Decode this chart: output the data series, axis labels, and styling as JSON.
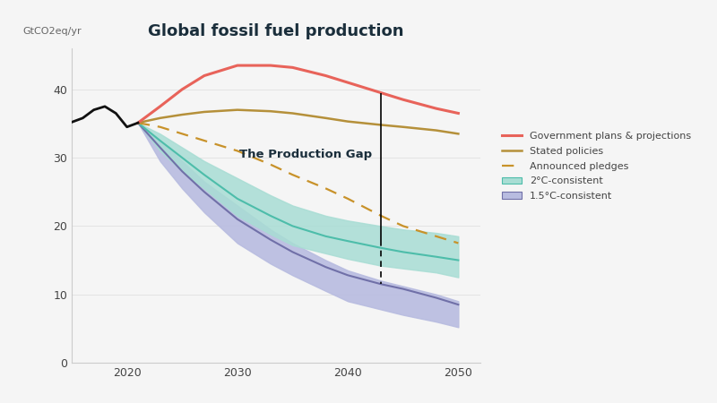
{
  "title": "Global fossil fuel production",
  "ylabel": "GtCO2eq/yr",
  "background_color": "#f5f5f5",
  "plot_bg_color": "#f5f5f5",
  "years_hist": [
    2015,
    2016,
    2017,
    2018,
    2019,
    2020,
    2021
  ],
  "hist_values": [
    35.2,
    35.8,
    37.0,
    37.5,
    36.5,
    34.5,
    35.1
  ],
  "years_proj": [
    2021,
    2023,
    2025,
    2027,
    2030,
    2033,
    2035,
    2038,
    2040,
    2043,
    2045,
    2048,
    2050
  ],
  "gov_plans": [
    35.1,
    37.5,
    40.0,
    42.0,
    43.5,
    43.5,
    43.2,
    42.0,
    41.0,
    39.5,
    38.5,
    37.2,
    36.5
  ],
  "stated_policies": [
    35.1,
    35.8,
    36.3,
    36.7,
    37.0,
    36.8,
    36.5,
    35.8,
    35.3,
    34.8,
    34.5,
    34.0,
    33.5
  ],
  "announced_pledges": [
    35.1,
    34.5,
    33.5,
    32.5,
    31.0,
    29.0,
    27.5,
    25.5,
    24.0,
    21.5,
    20.0,
    18.5,
    17.5
  ],
  "years_2c": [
    2021,
    2023,
    2025,
    2027,
    2030,
    2033,
    2035,
    2038,
    2040,
    2043,
    2045,
    2048,
    2050
  ],
  "line_2c": [
    35.1,
    32.5,
    30.0,
    27.5,
    24.0,
    21.5,
    20.0,
    18.5,
    17.8,
    16.8,
    16.2,
    15.5,
    15.0
  ],
  "band_2c_upper": [
    35.1,
    33.5,
    31.5,
    29.5,
    27.0,
    24.5,
    23.0,
    21.5,
    20.8,
    20.0,
    19.5,
    19.0,
    18.5
  ],
  "band_2c_lower": [
    35.1,
    31.0,
    28.0,
    25.5,
    21.5,
    18.8,
    17.2,
    16.0,
    15.2,
    14.2,
    13.8,
    13.2,
    12.5
  ],
  "years_15c": [
    2021,
    2023,
    2025,
    2027,
    2030,
    2033,
    2035,
    2038,
    2040,
    2043,
    2045,
    2048,
    2050
  ],
  "line_15c": [
    35.1,
    31.5,
    28.0,
    25.0,
    21.0,
    18.0,
    16.2,
    14.0,
    12.8,
    11.5,
    10.8,
    9.5,
    8.5
  ],
  "band_15c_upper": [
    35.1,
    32.5,
    29.5,
    26.5,
    23.0,
    19.5,
    17.5,
    15.0,
    13.5,
    12.0,
    11.2,
    10.0,
    9.0
  ],
  "band_15c_lower": [
    35.1,
    29.5,
    25.5,
    22.0,
    17.5,
    14.5,
    12.8,
    10.5,
    9.0,
    7.8,
    7.0,
    6.0,
    5.2
  ],
  "color_hist": "#111111",
  "color_gov": "#e8635a",
  "color_stated": "#b5903a",
  "color_pledges": "#c8922a",
  "color_2c_line": "#4dbdaa",
  "color_2c_band": "#a8ddd4",
  "color_15c_line": "#7070a8",
  "color_15c_band": "#b8bce0",
  "ylim": [
    0,
    46
  ],
  "xlim": [
    2015,
    2052
  ],
  "production_gap_x": 2043,
  "production_gap_label": "The Production Gap",
  "yticks": [
    0,
    10,
    20,
    30,
    40
  ],
  "xticks": [
    2020,
    2030,
    2040,
    2050
  ]
}
